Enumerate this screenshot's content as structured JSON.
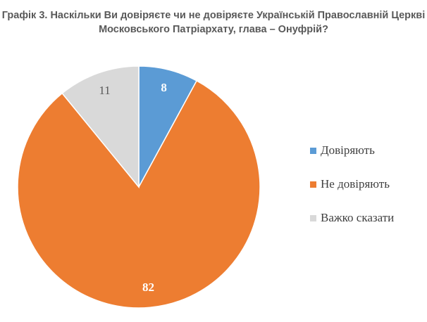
{
  "chart_data": {
    "type": "pie",
    "title_lines": [
      "Графік 3. Наскільки Ви довіряєте чи не довіряєте Українській Православній Церкві",
      "Московського Патріархату, глава – Онуфрій?"
    ],
    "series": [
      {
        "name": "Довіряють",
        "value": 8,
        "color": "#5b9bd5",
        "label_color": "#ffffff"
      },
      {
        "name": "Не довіряють",
        "value": 82,
        "color": "#ed7d31",
        "label_color": "#ffffff"
      },
      {
        "name": "Важко сказати",
        "value": 11,
        "color": "#d9d9d9",
        "label_color": "#595959"
      }
    ],
    "data_labels": [
      "8",
      "82",
      "11"
    ],
    "legend_position": "right"
  }
}
